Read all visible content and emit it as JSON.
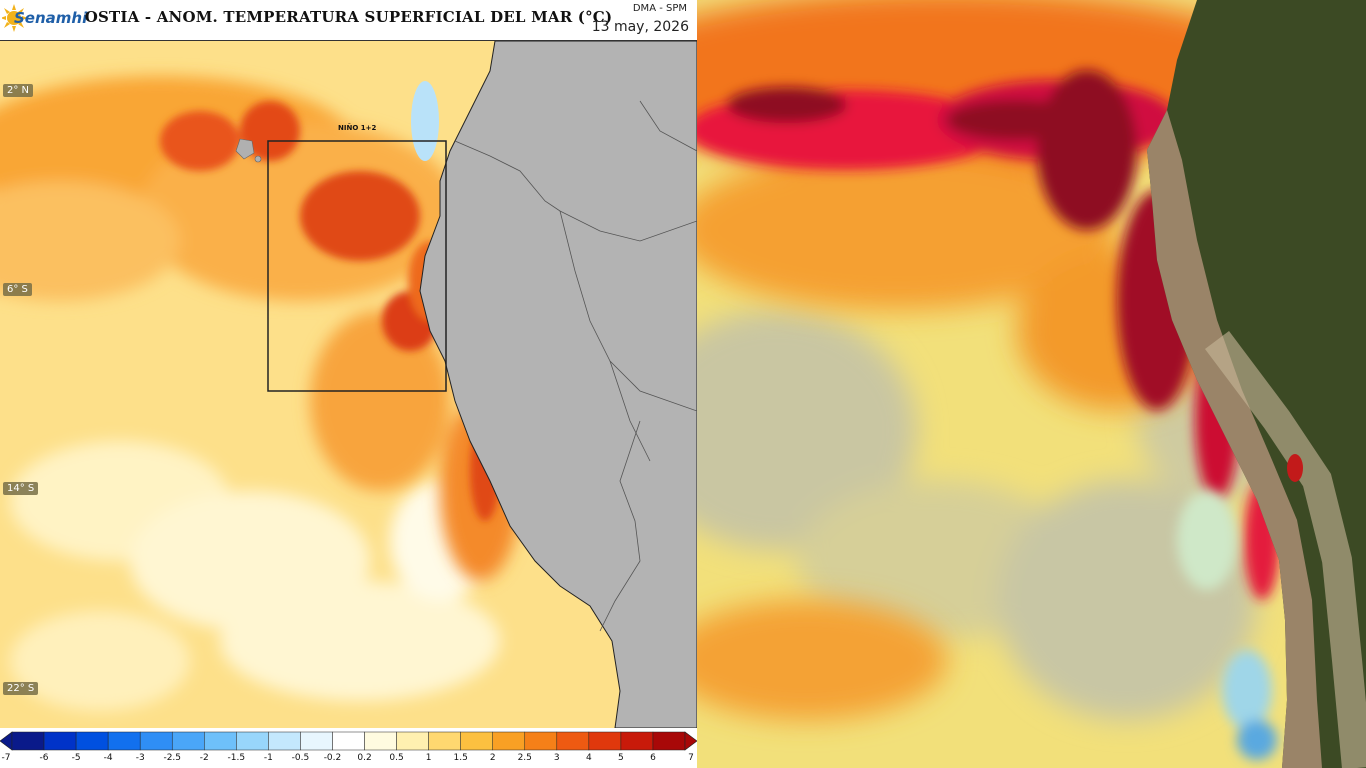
{
  "header": {
    "logo_text": "Senamhi",
    "title": "OSTIA - ANOM. TEMPERATURA SUPERFICIAL DEL MAR (°C)",
    "source": "DMA - SPM",
    "date": "13 may, 2026"
  },
  "map": {
    "lat_labels": [
      "2° N",
      "6° S",
      "14° S",
      "22° S"
    ],
    "region_label": "NIÑO 1+2"
  },
  "legend": {
    "ticks": [
      "-7",
      "-6",
      "-5",
      "-4",
      "-3",
      "-2.5",
      "-2",
      "-1.5",
      "-1",
      "-0.5",
      "-0.2",
      "0.2",
      "0.5",
      "1",
      "1.5",
      "2",
      "2.5",
      "3",
      "4",
      "5",
      "6",
      "7"
    ],
    "colors": [
      "#0a1a8a",
      "#0033c8",
      "#0050e0",
      "#1270ee",
      "#2f8ef5",
      "#4aa6f8",
      "#6ec0fa",
      "#98d6fb",
      "#c4e8fd",
      "#e8f6fe",
      "#ffffff",
      "#fffbe0",
      "#fff0b0",
      "#ffd870",
      "#fcc040",
      "#f9a024",
      "#f58018",
      "#ee5a12",
      "#e0380c",
      "#c81a0a",
      "#a80808"
    ]
  }
}
